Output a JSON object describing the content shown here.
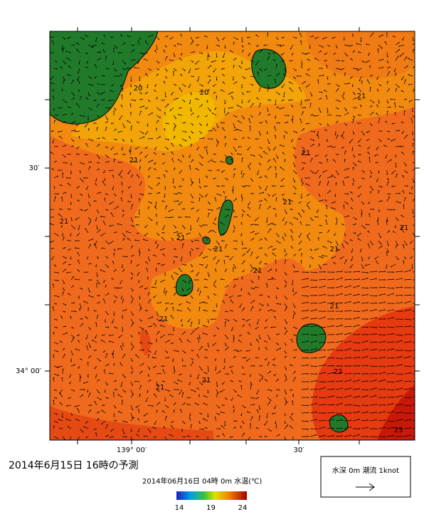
{
  "map": {
    "lat_labels": [
      "30′",
      "34° 00′"
    ],
    "lon_labels": [
      "139° 00′",
      "30′"
    ],
    "contour_labels": [
      "20",
      "20",
      "21",
      "21",
      "21",
      "21",
      "21",
      "21",
      "21",
      "21",
      "21",
      "21",
      "21",
      "21",
      "21",
      "21",
      "22",
      "23"
    ],
    "title": "2014年6月15日 16時の予測",
    "subtitle": "2014年06月16日 04時 0m 水温(℃)",
    "colorbar": {
      "ticks": [
        14,
        19,
        24
      ]
    },
    "legend": "水深 0m 潮流 1knot"
  }
}
